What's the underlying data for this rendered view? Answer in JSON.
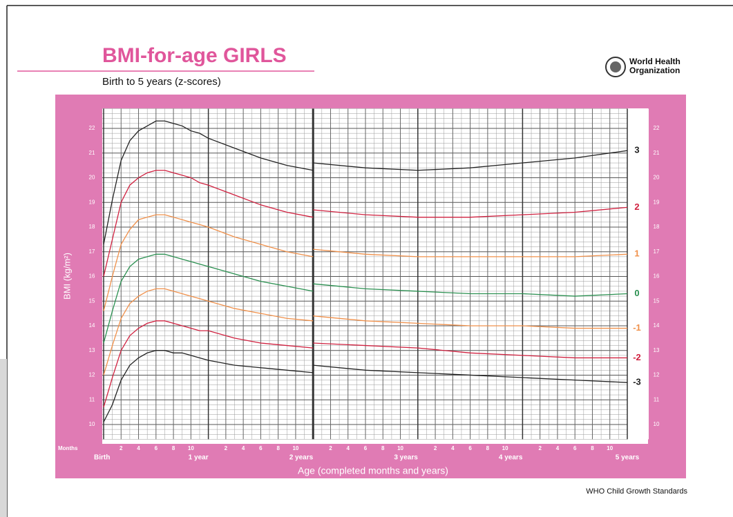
{
  "chart_data": {
    "type": "line",
    "title": "BMI-for-age GIRLS",
    "subtitle": "Birth to 5 years (z-scores)",
    "logo_text": [
      "World Health",
      "Organization"
    ],
    "ylabel": "BMI (kg/m²)",
    "xlabel": "Age (completed months and years)",
    "xtick_caption": "Months",
    "source": "WHO Child Growth Standards",
    "x": [
      0,
      1,
      2,
      3,
      4,
      5,
      6,
      7,
      8,
      9,
      10,
      11,
      12,
      15,
      18,
      21,
      24,
      24,
      24,
      30,
      36,
      42,
      48,
      54,
      60
    ],
    "xlim": [
      0,
      60
    ],
    "xticks": [
      {
        "value": 0,
        "label": "Birth"
      },
      2,
      4,
      6,
      8,
      10,
      {
        "value": 12,
        "label": "1 year"
      },
      {
        "value": 14,
        "label": "2"
      },
      {
        "value": 16,
        "label": "4"
      },
      {
        "value": 18,
        "label": "6"
      },
      {
        "value": 20,
        "label": "8"
      },
      {
        "value": 22,
        "label": "10"
      },
      {
        "value": 24,
        "label": "2 years"
      },
      {
        "value": 26,
        "label": "2"
      },
      {
        "value": 28,
        "label": "4"
      },
      {
        "value": 30,
        "label": "6"
      },
      {
        "value": 32,
        "label": "8"
      },
      {
        "value": 34,
        "label": "10"
      },
      {
        "value": 36,
        "label": "3 years"
      },
      {
        "value": 38,
        "label": "2"
      },
      {
        "value": 40,
        "label": "4"
      },
      {
        "value": 42,
        "label": "6"
      },
      {
        "value": 44,
        "label": "8"
      },
      {
        "value": 46,
        "label": "10"
      },
      {
        "value": 48,
        "label": "4 years"
      },
      {
        "value": 50,
        "label": "2"
      },
      {
        "value": 52,
        "label": "4"
      },
      {
        "value": 54,
        "label": "6"
      },
      {
        "value": 56,
        "label": "8"
      },
      {
        "value": 58,
        "label": "10"
      },
      {
        "value": 60,
        "label": "5 years"
      }
    ],
    "ylim": [
      9.4,
      22.8
    ],
    "yticks": [
      10,
      11,
      12,
      13,
      14,
      15,
      16,
      17,
      18,
      19,
      20,
      21,
      22
    ],
    "grid": true,
    "series": [
      {
        "name": "3",
        "color": "#222222",
        "values": [
          17.3,
          19.1,
          20.7,
          21.5,
          21.9,
          22.1,
          22.3,
          22.3,
          22.2,
          22.1,
          21.9,
          21.8,
          21.6,
          21.2,
          20.8,
          20.5,
          20.3,
          null,
          20.6,
          20.4,
          20.3,
          20.4,
          20.6,
          20.8,
          21.1
        ]
      },
      {
        "name": "2",
        "color": "#d0203f",
        "values": [
          16.0,
          17.5,
          19.0,
          19.7,
          20.0,
          20.2,
          20.3,
          20.3,
          20.2,
          20.1,
          20.0,
          19.8,
          19.7,
          19.3,
          18.9,
          18.6,
          18.4,
          null,
          18.7,
          18.5,
          18.4,
          18.4,
          18.5,
          18.6,
          18.8
        ]
      },
      {
        "name": "1",
        "color": "#f0904a",
        "values": [
          14.6,
          16.0,
          17.3,
          17.9,
          18.3,
          18.4,
          18.5,
          18.5,
          18.4,
          18.3,
          18.2,
          18.1,
          18.0,
          17.6,
          17.3,
          17.0,
          16.8,
          null,
          17.1,
          16.9,
          16.8,
          16.8,
          16.8,
          16.8,
          16.9
        ]
      },
      {
        "name": "0",
        "color": "#2a9050",
        "values": [
          13.3,
          14.6,
          15.8,
          16.4,
          16.7,
          16.8,
          16.9,
          16.9,
          16.8,
          16.7,
          16.6,
          16.5,
          16.4,
          16.1,
          15.8,
          15.6,
          15.4,
          null,
          15.7,
          15.5,
          15.4,
          15.3,
          15.3,
          15.2,
          15.3
        ]
      },
      {
        "name": "-1",
        "color": "#f0904a",
        "values": [
          12.0,
          13.2,
          14.3,
          14.9,
          15.2,
          15.4,
          15.5,
          15.5,
          15.4,
          15.3,
          15.2,
          15.1,
          15.0,
          14.7,
          14.5,
          14.3,
          14.2,
          null,
          14.4,
          14.2,
          14.1,
          14.0,
          14.0,
          13.9,
          13.9
        ]
      },
      {
        "name": "-2",
        "color": "#d0203f",
        "values": [
          10.7,
          11.9,
          13.0,
          13.6,
          13.9,
          14.1,
          14.2,
          14.2,
          14.1,
          14.0,
          13.9,
          13.8,
          13.8,
          13.5,
          13.3,
          13.2,
          13.1,
          null,
          13.3,
          13.2,
          13.1,
          12.9,
          12.8,
          12.7,
          12.7
        ]
      },
      {
        "name": "-3",
        "color": "#222222",
        "values": [
          10.1,
          10.8,
          11.8,
          12.4,
          12.7,
          12.9,
          13.0,
          13.0,
          12.9,
          12.9,
          12.8,
          12.7,
          12.6,
          12.4,
          12.3,
          12.2,
          12.1,
          null,
          12.4,
          12.2,
          12.1,
          12.0,
          11.9,
          11.8,
          11.7
        ]
      }
    ]
  }
}
